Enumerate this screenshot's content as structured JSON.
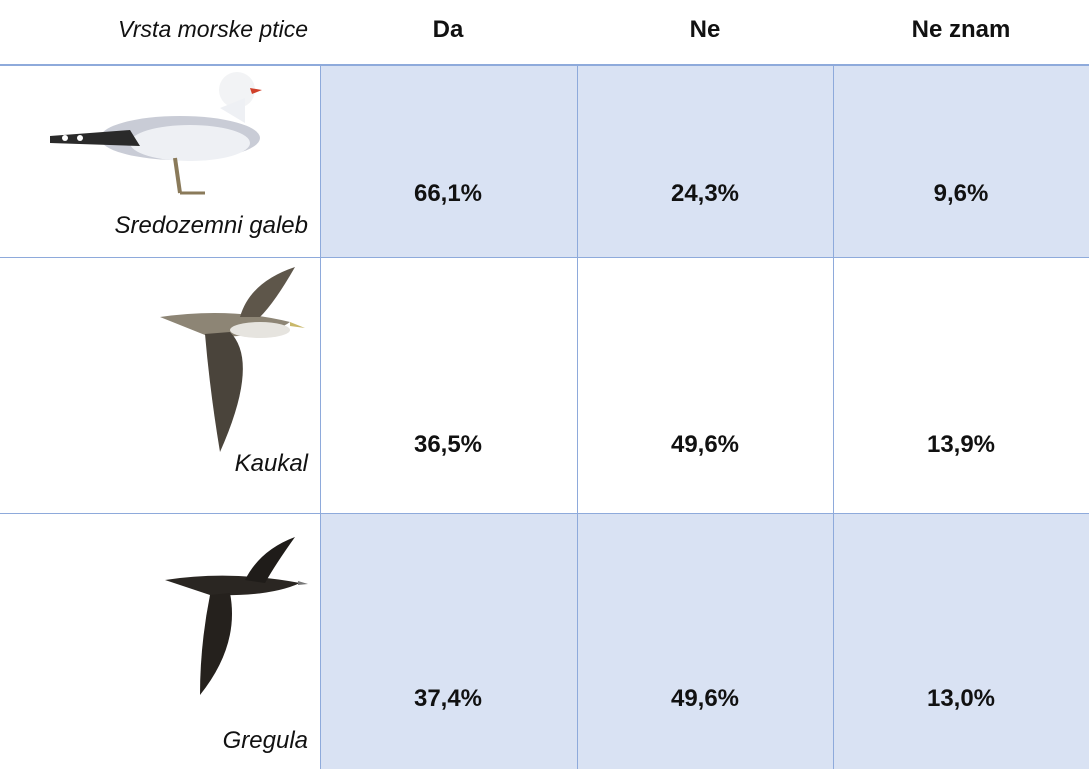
{
  "table": {
    "header": [
      "Vrsta morske ptice",
      "Da",
      "Ne",
      "Ne znam"
    ],
    "rows": [
      {
        "species": "Sredozemni galeb",
        "values": [
          "66,1%",
          "24,3%",
          "9,6%"
        ]
      },
      {
        "species": "Kaukal",
        "values": [
          "36,5%",
          "49,6%",
          "13,9%"
        ]
      },
      {
        "species": "Gregula",
        "values": [
          "37,4%",
          "49,6%",
          "13,0%"
        ]
      }
    ]
  }
}
